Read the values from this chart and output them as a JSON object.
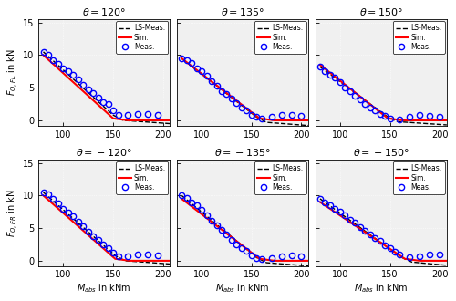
{
  "titles": [
    [
      "$\\theta = 120°$",
      "$\\theta = 135°$",
      "$\\theta = 150°$"
    ],
    [
      "$\\theta = -120°$",
      "$\\theta = -135°$",
      "$\\theta = -150°$"
    ]
  ],
  "ylabel_top": "$F_{O,FL}$ in kN",
  "ylabel_bottom": "$F_{O,FR}$ in kN",
  "xlabel": "$M_{abs}$ in kNm",
  "xlim": [
    75,
    207
  ],
  "ylim": [
    -0.8,
    15.5
  ],
  "xticks": [
    100,
    150,
    200
  ],
  "yticks": [
    0,
    5,
    10,
    15
  ],
  "background_color": "#f0f0f0",
  "meas_data": {
    "top_120": {
      "x": [
        80,
        85,
        90,
        95,
        100,
        105,
        110,
        115,
        120,
        125,
        130,
        135,
        140,
        145,
        150,
        155,
        165,
        175,
        185,
        195
      ],
      "y": [
        10.5,
        10.1,
        9.2,
        8.7,
        8.0,
        7.5,
        7.0,
        6.3,
        5.5,
        4.8,
        4.2,
        3.5,
        2.8,
        2.5,
        1.5,
        0.9,
        0.8,
        1.0,
        1.0,
        0.8
      ]
    },
    "top_135": {
      "x": [
        80,
        85,
        90,
        95,
        100,
        105,
        110,
        115,
        120,
        125,
        130,
        135,
        140,
        145,
        150,
        155,
        160,
        170,
        180,
        190,
        200
      ],
      "y": [
        9.5,
        9.2,
        8.8,
        8.0,
        7.5,
        6.8,
        6.0,
        5.3,
        4.5,
        4.0,
        3.3,
        2.7,
        2.0,
        1.5,
        0.9,
        0.5,
        0.3,
        0.5,
        0.8,
        0.8,
        0.7
      ]
    },
    "top_150": {
      "x": [
        80,
        85,
        90,
        95,
        100,
        105,
        110,
        115,
        120,
        125,
        130,
        135,
        140,
        145,
        150,
        160,
        170,
        180,
        190,
        200
      ],
      "y": [
        8.2,
        7.5,
        7.0,
        6.5,
        5.8,
        5.0,
        4.4,
        3.8,
        3.2,
        2.5,
        2.0,
        1.5,
        1.0,
        0.7,
        0.3,
        0.2,
        0.5,
        0.8,
        0.7,
        0.6
      ]
    },
    "bot_120": {
      "x": [
        80,
        85,
        90,
        95,
        100,
        105,
        110,
        115,
        120,
        125,
        130,
        135,
        140,
        145,
        150,
        155,
        165,
        175,
        185,
        195
      ],
      "y": [
        10.5,
        10.2,
        9.5,
        8.8,
        8.0,
        7.4,
        6.8,
        6.0,
        5.3,
        4.5,
        3.8,
        3.2,
        2.5,
        2.0,
        1.3,
        0.7,
        0.7,
        0.9,
        1.0,
        0.8
      ]
    },
    "bot_135": {
      "x": [
        80,
        85,
        90,
        95,
        100,
        105,
        110,
        115,
        120,
        125,
        130,
        135,
        140,
        145,
        150,
        155,
        160,
        170,
        180,
        190,
        200
      ],
      "y": [
        10.0,
        9.7,
        9.0,
        8.5,
        7.8,
        7.0,
        6.2,
        5.5,
        4.7,
        4.0,
        3.2,
        2.5,
        2.0,
        1.5,
        0.8,
        0.4,
        0.2,
        0.4,
        0.7,
        0.8,
        0.7
      ]
    },
    "bot_150": {
      "x": [
        80,
        85,
        90,
        95,
        100,
        105,
        110,
        115,
        120,
        125,
        130,
        135,
        140,
        145,
        150,
        155,
        160,
        170,
        180,
        190,
        200
      ],
      "y": [
        9.5,
        9.0,
        8.5,
        8.0,
        7.5,
        7.0,
        6.3,
        5.8,
        5.2,
        4.6,
        4.0,
        3.5,
        3.0,
        2.4,
        1.9,
        1.4,
        0.9,
        0.5,
        0.7,
        0.9,
        0.9
      ]
    }
  },
  "ls_data": {
    "top_120": {
      "x": [
        80,
        150,
        160,
        207
      ],
      "y": [
        10.5,
        0.8,
        0.0,
        -0.5
      ]
    },
    "top_135": {
      "x": [
        80,
        155,
        165,
        207
      ],
      "y": [
        9.5,
        0.5,
        -0.3,
        -0.8
      ]
    },
    "top_150": {
      "x": [
        80,
        148,
        158,
        207
      ],
      "y": [
        8.2,
        0.5,
        -0.2,
        -0.7
      ]
    },
    "bot_120": {
      "x": [
        80,
        152,
        162,
        207
      ],
      "y": [
        10.5,
        0.8,
        0.0,
        -0.5
      ]
    },
    "bot_135": {
      "x": [
        80,
        155,
        165,
        207
      ],
      "y": [
        10.0,
        0.5,
        -0.3,
        -0.8
      ]
    },
    "bot_150": {
      "x": [
        80,
        162,
        172,
        207
      ],
      "y": [
        9.5,
        0.5,
        -0.2,
        -0.7
      ]
    }
  },
  "sim_data": {
    "top_120": {
      "x": [
        80,
        150,
        165,
        207
      ],
      "y": [
        10.0,
        0.3,
        0.0,
        0.0
      ]
    },
    "top_135": {
      "x": [
        80,
        158,
        173,
        207
      ],
      "y": [
        9.5,
        0.3,
        0.0,
        0.0
      ]
    },
    "top_150": {
      "x": [
        80,
        148,
        163,
        207
      ],
      "y": [
        8.5,
        0.3,
        0.0,
        0.0
      ]
    },
    "bot_120": {
      "x": [
        80,
        152,
        167,
        207
      ],
      "y": [
        10.0,
        0.3,
        0.0,
        0.0
      ]
    },
    "bot_135": {
      "x": [
        80,
        158,
        173,
        207
      ],
      "y": [
        9.5,
        0.3,
        0.0,
        0.0
      ]
    },
    "bot_150": {
      "x": [
        80,
        165,
        180,
        207
      ],
      "y": [
        9.0,
        0.3,
        0.0,
        0.0
      ]
    }
  }
}
